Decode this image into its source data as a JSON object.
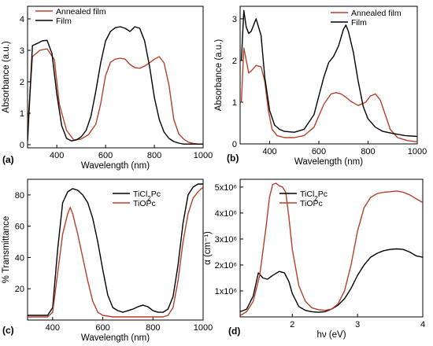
{
  "chart_data": [
    {
      "type": "line",
      "panel": "(a)",
      "xlabel": "Wavelength (nm)",
      "ylabel": "Absorbance (a.u.)",
      "xlim": [
        280,
        1000
      ],
      "ylim": [
        -0.1,
        4.4
      ],
      "xticks": [
        400,
        600,
        800,
        1000
      ],
      "yticks": [
        0,
        1,
        2,
        3,
        4
      ],
      "legend_position": "top-left",
      "series": [
        {
          "name": "Annealed film",
          "color": "#b5402a",
          "x": [
            280,
            300,
            330,
            360,
            390,
            410,
            440,
            470,
            500,
            530,
            560,
            580,
            600,
            620,
            640,
            660,
            680,
            700,
            720,
            740,
            760,
            780,
            800,
            820,
            840,
            860,
            880,
            900,
            920,
            940,
            960,
            980,
            1000
          ],
          "y": [
            0.5,
            2.8,
            3.0,
            3.05,
            2.7,
            1.3,
            0.45,
            0.15,
            0.18,
            0.32,
            0.65,
            1.3,
            2.2,
            2.62,
            2.72,
            2.75,
            2.72,
            2.55,
            2.45,
            2.43,
            2.5,
            2.6,
            2.72,
            2.8,
            2.6,
            1.9,
            0.8,
            0.35,
            0.18,
            0.08,
            0.04,
            0.02,
            0.02
          ]
        },
        {
          "name": "Film",
          "color": "#000000",
          "x": [
            280,
            300,
            320,
            340,
            360,
            380,
            400,
            420,
            440,
            460,
            480,
            500,
            520,
            540,
            560,
            580,
            600,
            620,
            640,
            660,
            680,
            700,
            720,
            740,
            760,
            780,
            800,
            820,
            840,
            860,
            880,
            900,
            920,
            940,
            960,
            980,
            1000
          ],
          "y": [
            0.1,
            3.15,
            3.22,
            3.3,
            3.32,
            2.9,
            1.6,
            0.6,
            0.2,
            0.12,
            0.15,
            0.25,
            0.45,
            0.9,
            1.7,
            2.6,
            3.3,
            3.6,
            3.72,
            3.75,
            3.7,
            3.6,
            3.75,
            3.7,
            3.3,
            2.5,
            1.5,
            0.8,
            0.4,
            0.2,
            0.1,
            0.05,
            0.02,
            0.02,
            0.02,
            0.02,
            0.02
          ]
        }
      ]
    },
    {
      "type": "line",
      "panel": "(b)",
      "xlabel": "Wavelength (nm)",
      "ylabel": "Absorbance (a.u.)",
      "xlim": [
        280,
        1000
      ],
      "ylim": [
        0,
        3.3
      ],
      "xticks": [
        400,
        600,
        800,
        1000
      ],
      "yticks": [
        0,
        1,
        2,
        3
      ],
      "legend_position": "top-right",
      "series": [
        {
          "name": "Annealed film",
          "color": "#b5402a",
          "x": [
            285,
            295,
            305,
            315,
            325,
            345,
            365,
            380,
            395,
            410,
            430,
            460,
            500,
            540,
            580,
            620,
            650,
            670,
            690,
            710,
            730,
            760,
            790,
            810,
            830,
            850,
            870,
            890,
            920,
            960,
            1000
          ],
          "y": [
            1.0,
            2.3,
            2.0,
            1.7,
            1.75,
            1.88,
            1.85,
            1.5,
            0.8,
            0.35,
            0.2,
            0.15,
            0.15,
            0.2,
            0.4,
            0.95,
            1.2,
            1.23,
            1.2,
            1.12,
            1.02,
            0.92,
            1.0,
            1.15,
            1.2,
            1.05,
            0.7,
            0.35,
            0.15,
            0.08,
            0.05
          ]
        },
        {
          "name": "Film",
          "color": "#000000",
          "x": [
            285,
            295,
            305,
            315,
            325,
            345,
            365,
            380,
            400,
            420,
            440,
            460,
            500,
            540,
            580,
            620,
            640,
            660,
            680,
            700,
            710,
            720,
            740,
            760,
            780,
            800,
            830,
            860,
            900,
            950,
            1000
          ],
          "y": [
            2.0,
            3.2,
            2.8,
            2.65,
            2.7,
            3.0,
            2.6,
            1.6,
            0.8,
            0.45,
            0.35,
            0.3,
            0.28,
            0.35,
            0.7,
            1.6,
            1.95,
            2.1,
            2.35,
            2.75,
            2.85,
            2.7,
            2.2,
            1.5,
            0.9,
            0.6,
            0.4,
            0.3,
            0.25,
            0.2,
            0.18
          ]
        }
      ]
    },
    {
      "type": "line",
      "panel": "(c)",
      "xlabel": "Wavelength (nm)",
      "ylabel": "% Transmittance",
      "xlim": [
        300,
        1000
      ],
      "ylim": [
        0,
        90
      ],
      "xticks": [
        400,
        600,
        800,
        1000
      ],
      "yticks": [
        20,
        40,
        60,
        80
      ],
      "legend_position": "top-right",
      "series": [
        {
          "name": "TiCl2Pc",
          "color": "#000000",
          "x": [
            300,
            340,
            380,
            400,
            420,
            440,
            460,
            480,
            500,
            520,
            540,
            560,
            580,
            600,
            620,
            640,
            660,
            680,
            700,
            720,
            740,
            760,
            780,
            800,
            820,
            840,
            860,
            880,
            900,
            920,
            940,
            960,
            980,
            1000
          ],
          "y": [
            3,
            3,
            3,
            8,
            45,
            75,
            82,
            84,
            83,
            80,
            75,
            65,
            50,
            32,
            16,
            8,
            6,
            5,
            6,
            7,
            8.5,
            9.5,
            8.5,
            6,
            5,
            5,
            7,
            15,
            35,
            62,
            80,
            85,
            87,
            87
          ]
        },
        {
          "name": "TiOPc",
          "color": "#b5402a",
          "x": [
            300,
            340,
            380,
            400,
            420,
            440,
            460,
            470,
            480,
            500,
            520,
            540,
            560,
            580,
            600,
            640,
            700,
            760,
            800,
            840,
            860,
            880,
            900,
            920,
            940,
            960,
            980,
            1000
          ],
          "y": [
            2,
            2,
            2,
            5,
            30,
            55,
            68,
            72,
            68,
            55,
            40,
            25,
            12,
            5,
            3,
            2,
            2,
            2,
            2,
            2,
            3,
            8,
            25,
            50,
            68,
            78,
            82,
            85
          ]
        }
      ]
    },
    {
      "type": "line",
      "panel": "(d)",
      "xlabel": "hν (eV)",
      "ylabel": "α (cm⁻¹)",
      "xlim": [
        1.2,
        4.0
      ],
      "ylim": [
        0,
        5300000
      ],
      "xticks": [
        2,
        3,
        4
      ],
      "yticks": [
        1000000,
        2000000,
        3000000,
        4000000,
        5000000
      ],
      "ytick_labels": [
        "1x10⁶",
        "2x10⁶",
        "3x10⁶",
        "4x10⁶",
        "5x10⁶"
      ],
      "legend_position": "top-center",
      "series": [
        {
          "name": "TiCl2Pc",
          "color": "#000000",
          "x": [
            1.2,
            1.3,
            1.4,
            1.48,
            1.55,
            1.62,
            1.7,
            1.8,
            1.88,
            1.95,
            2.0,
            2.1,
            2.2,
            2.3,
            2.4,
            2.5,
            2.6,
            2.7,
            2.8,
            2.9,
            3.0,
            3.1,
            3.2,
            3.3,
            3.4,
            3.5,
            3.6,
            3.7,
            3.8,
            3.9,
            4.0
          ],
          "y": [
            200000,
            300000,
            800000,
            1700000,
            1500000,
            1450000,
            1600000,
            1750000,
            1700000,
            1350000,
            900000,
            400000,
            250000,
            200000,
            180000,
            200000,
            300000,
            450000,
            700000,
            1100000,
            1600000,
            2000000,
            2300000,
            2450000,
            2550000,
            2600000,
            2620000,
            2600000,
            2500000,
            2350000,
            2300000
          ]
        },
        {
          "name": "TiOPc",
          "color": "#b5402a",
          "x": [
            1.2,
            1.3,
            1.4,
            1.5,
            1.6,
            1.65,
            1.7,
            1.75,
            1.8,
            1.85,
            1.9,
            1.95,
            2.0,
            2.1,
            2.2,
            2.3,
            2.4,
            2.5,
            2.6,
            2.7,
            2.8,
            2.9,
            3.0,
            3.1,
            3.2,
            3.3,
            3.4,
            3.5,
            3.6,
            3.7,
            3.8,
            3.9,
            4.0
          ],
          "y": [
            50000,
            200000,
            600000,
            1600000,
            3500000,
            4600000,
            5100000,
            5150000,
            5050000,
            5000000,
            4800000,
            3800000,
            2600000,
            1200000,
            600000,
            350000,
            280000,
            250000,
            300000,
            500000,
            1000000,
            2000000,
            3300000,
            4200000,
            4600000,
            4750000,
            4800000,
            4820000,
            4850000,
            4800000,
            4700000,
            4550000,
            4400000
          ]
        }
      ]
    }
  ]
}
